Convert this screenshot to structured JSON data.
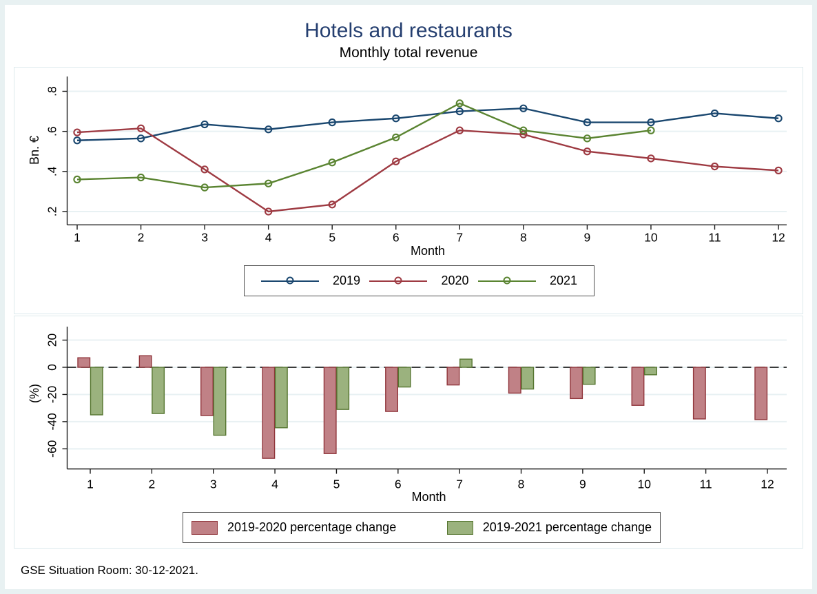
{
  "page": {
    "title": "Hotels and restaurants",
    "subtitle": "Monthly total revenue",
    "caption": "GSE Situation Room: 30-12-2021."
  },
  "colors": {
    "title_text": "#253f70",
    "navy": "#1a476f",
    "maroon": "#9e3a42",
    "green": "#5a8431",
    "bar_red_fill": "#c08186",
    "bar_red_edge": "#90353b",
    "bar_green_fill": "#9bb27e",
    "bar_green_edge": "#55752f",
    "grid": "#e8f1f3",
    "axis": "#1a1a1a",
    "zero_line": "#000000"
  },
  "chart_data": [
    {
      "type": "line",
      "panel": "top",
      "title": "Hotels and restaurants",
      "subtitle": "Monthly total revenue",
      "xlabel": "Month",
      "ylabel": "Bn. €",
      "x": [
        1,
        2,
        3,
        4,
        5,
        6,
        7,
        8,
        9,
        10,
        11,
        12
      ],
      "yticks": [
        0.2,
        0.4,
        0.6,
        0.8
      ],
      "yticklabels": [
        ".2",
        ".4",
        ".6",
        ".8"
      ],
      "ylim": [
        0.13,
        0.87
      ],
      "grid": true,
      "legend_position": "bottom-center-boxed",
      "marker": "open-circle",
      "series": [
        {
          "name": "2019",
          "color_key": "navy",
          "values": [
            0.555,
            0.565,
            0.635,
            0.61,
            0.645,
            0.665,
            0.7,
            0.715,
            0.645,
            0.645,
            0.69,
            0.665
          ]
        },
        {
          "name": "2020",
          "color_key": "maroon",
          "values": [
            0.595,
            0.615,
            0.41,
            0.2,
            0.235,
            0.45,
            0.605,
            0.585,
            0.5,
            0.465,
            0.425,
            0.405
          ]
        },
        {
          "name": "2021",
          "color_key": "green",
          "values": [
            0.36,
            0.37,
            0.32,
            0.34,
            0.445,
            0.57,
            0.74,
            0.605,
            0.565,
            0.605,
            null,
            null
          ]
        }
      ]
    },
    {
      "type": "bar",
      "panel": "bottom",
      "xlabel": "Month",
      "ylabel": "(%)",
      "categories": [
        1,
        2,
        3,
        4,
        5,
        6,
        7,
        8,
        9,
        10,
        11,
        12
      ],
      "yticks": [
        20,
        0,
        -20,
        -40,
        -60
      ],
      "yticklabels": [
        "20",
        "0",
        "-20",
        "-40",
        "-60"
      ],
      "ylim": [
        -75,
        29
      ],
      "grid": true,
      "zero_line": "dashed-black",
      "legend_position": "bottom-center-boxed",
      "series": [
        {
          "name": "2019-2020 percentage change",
          "fill_key": "bar_red_fill",
          "edge_key": "bar_red_edge",
          "values": [
            7,
            8.5,
            -35.5,
            -67,
            -63.5,
            -32.5,
            -13,
            -19,
            -23,
            -28,
            -38,
            -38.5
          ]
        },
        {
          "name": "2019-2021 percentage change",
          "fill_key": "bar_green_fill",
          "edge_key": "bar_green_edge",
          "values": [
            -35,
            -34,
            -50,
            -44.5,
            -31,
            -14.5,
            6,
            -16,
            -12.5,
            -5.5,
            null,
            null
          ]
        }
      ]
    }
  ]
}
